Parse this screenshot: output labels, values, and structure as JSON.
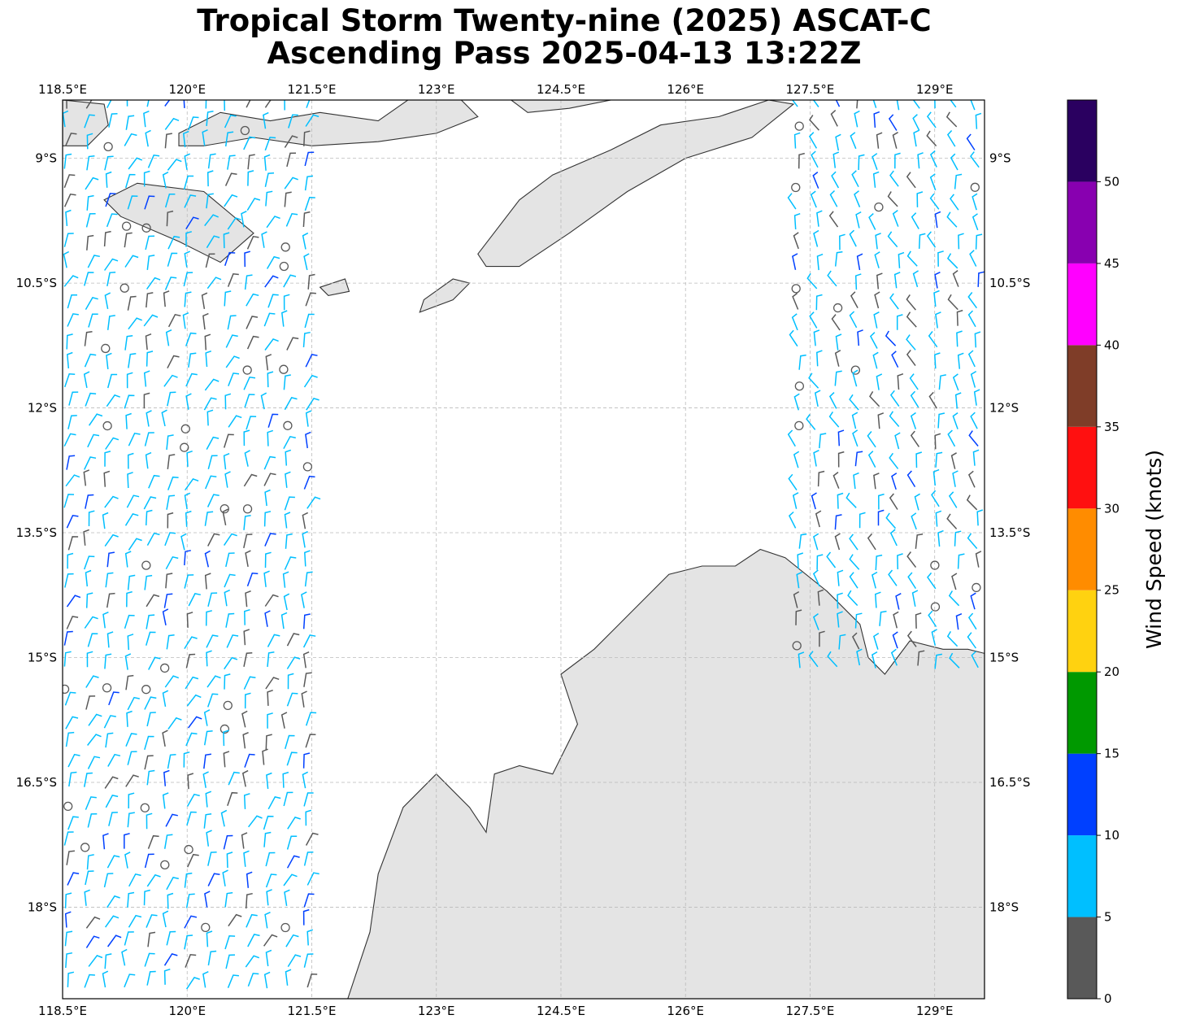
{
  "title": {
    "line1": "Tropical Storm Twenty-nine (2025) ASCAT-C",
    "line2": "Ascending Pass 2025-04-13 13:22Z"
  },
  "map": {
    "lon_range": [
      118.5,
      129.6
    ],
    "lat_range": [
      -8.3,
      -19.1
    ],
    "lon_ticks": [
      {
        "value": 118.5,
        "label": "118.5°E"
      },
      {
        "value": 120.0,
        "label": "120°E"
      },
      {
        "value": 121.5,
        "label": "121.5°E"
      },
      {
        "value": 123.0,
        "label": "123°E"
      },
      {
        "value": 124.5,
        "label": "124.5°E"
      },
      {
        "value": 126.0,
        "label": "126°E"
      },
      {
        "value": 127.5,
        "label": "127.5°E"
      },
      {
        "value": 129.0,
        "label": "129°E"
      }
    ],
    "lat_ticks": [
      {
        "value": -9.0,
        "label": "9°S"
      },
      {
        "value": -10.5,
        "label": "10.5°S"
      },
      {
        "value": -12.0,
        "label": "12°S"
      },
      {
        "value": -13.5,
        "label": "13.5°S"
      },
      {
        "value": -15.0,
        "label": "15°S"
      },
      {
        "value": -16.5,
        "label": "16.5°S"
      },
      {
        "value": -18.0,
        "label": "18°S"
      }
    ],
    "land_color": "#e4e4e4",
    "coast_color": "#333333",
    "grid_color": "#bbbbbb"
  },
  "colorbar": {
    "label": "Wind Speed (knots)",
    "bins": [
      {
        "from": 0,
        "to": 5,
        "color": "#595959"
      },
      {
        "from": 5,
        "to": 10,
        "color": "#00bfff"
      },
      {
        "from": 10,
        "to": 15,
        "color": "#0040ff"
      },
      {
        "from": 15,
        "to": 20,
        "color": "#009900"
      },
      {
        "from": 20,
        "to": 25,
        "color": "#ffd210"
      },
      {
        "from": 25,
        "to": 30,
        "color": "#ff8c00"
      },
      {
        "from": 30,
        "to": 35,
        "color": "#ff1010"
      },
      {
        "from": 35,
        "to": 40,
        "color": "#7f3d28"
      },
      {
        "from": 40,
        "to": 45,
        "color": "#ff00ff"
      },
      {
        "from": 45,
        "to": 50,
        "color": "#8800b0"
      },
      {
        "from": 50,
        "to": 55,
        "color": "#2a0060"
      }
    ],
    "tick_labels": [
      "0",
      "5",
      "10",
      "15",
      "20",
      "25",
      "30",
      "35",
      "40",
      "45",
      "50"
    ]
  },
  "swaths": [
    {
      "name": "west-swath",
      "lon_min": 118.5,
      "lon_max": 121.5,
      "lat_min": -19.1,
      "lat_max": -8.3
    },
    {
      "name": "east-swath",
      "lon_min": 127.3,
      "lon_max": 129.6,
      "lat_min": -15.2,
      "lat_max": -8.3
    }
  ]
}
